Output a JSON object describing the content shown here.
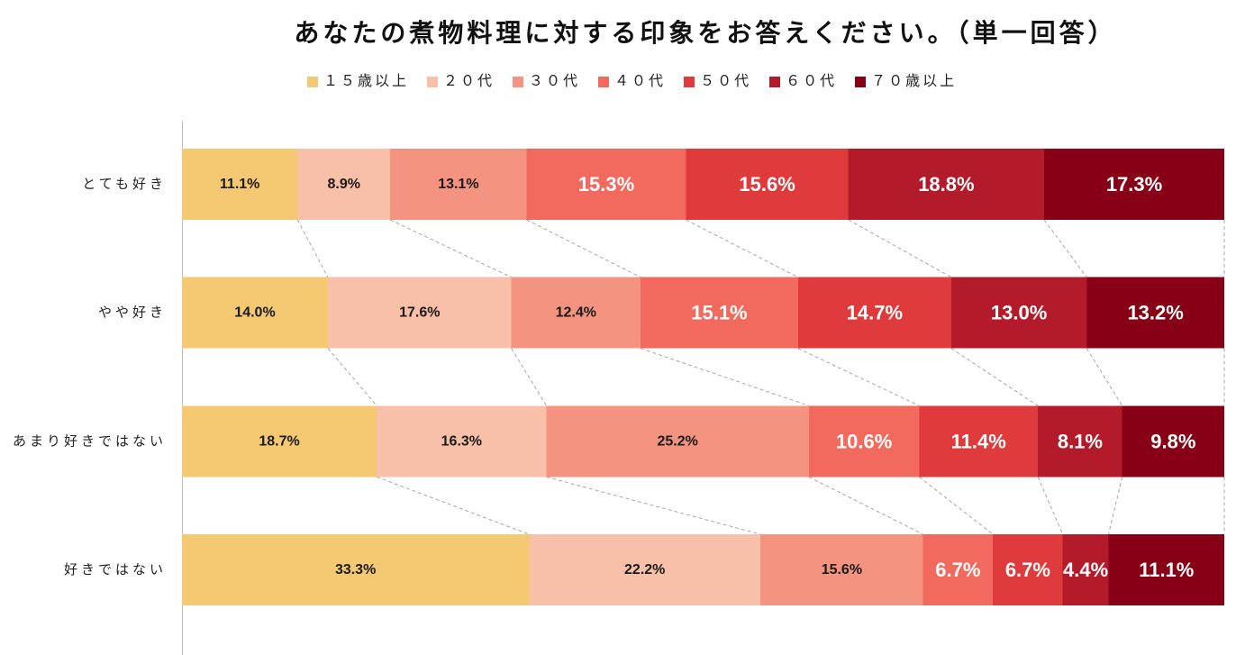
{
  "chart_data": {
    "type": "bar",
    "horizontal": true,
    "stacked_percent": true,
    "title": "あなたの煮物料理に対する印象をお答えください。（単一回答）",
    "legend_position": "top",
    "grid": false,
    "series_lines": true,
    "xlim": [
      0,
      100
    ],
    "categories": [
      "とても好き",
      "やや好き",
      "あまり好きではない",
      "好きではない"
    ],
    "series": [
      {
        "name": "１５歳以上",
        "color": "#F5C971",
        "label_color": "#1A1A1A",
        "values": [
          11.1,
          14.0,
          18.7,
          33.3
        ],
        "labels": [
          "11.1%",
          "14.0%",
          "18.7%",
          "33.3%"
        ]
      },
      {
        "name": "２０代",
        "color": "#F8C0A8",
        "label_color": "#1A1A1A",
        "values": [
          8.9,
          17.6,
          16.3,
          22.2
        ],
        "labels": [
          "8.9%",
          "17.6%",
          "16.3%",
          "22.2%"
        ]
      },
      {
        "name": "３０代",
        "color": "#F4937F",
        "label_color": "#1A1A1A",
        "values": [
          13.1,
          12.4,
          25.2,
          15.6
        ],
        "labels": [
          "13.1%",
          "12.4%",
          "25.2%",
          "15.6%"
        ]
      },
      {
        "name": "４０代",
        "color": "#F2695D",
        "label_color": "#FFFFFF",
        "values": [
          15.3,
          15.1,
          10.6,
          6.7
        ],
        "labels": [
          "15.3%",
          "15.1%",
          "10.6%",
          "6.7%"
        ]
      },
      {
        "name": "５０代",
        "color": "#DF3B3C",
        "label_color": "#FFFFFF",
        "values": [
          15.6,
          14.7,
          11.4,
          6.7
        ],
        "labels": [
          "15.6%",
          "14.7%",
          "11.4%",
          "6.7%"
        ]
      },
      {
        "name": "６０代",
        "color": "#B41B2A",
        "label_color": "#FFFFFF",
        "values": [
          18.8,
          13.0,
          8.1,
          4.4
        ],
        "labels": [
          "18.8%",
          "13.0%",
          "8.1%",
          "4.4%"
        ]
      },
      {
        "name": "７０歳以上",
        "color": "#880016",
        "label_color": "#FFFFFF",
        "values": [
          17.3,
          13.2,
          9.8,
          11.1
        ],
        "labels": [
          "17.3%",
          "13.2%",
          "9.8%",
          "11.1%"
        ]
      }
    ]
  }
}
